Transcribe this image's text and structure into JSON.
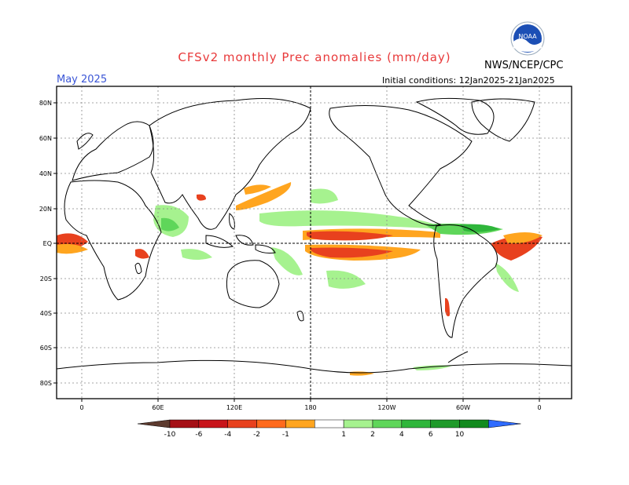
{
  "header": {
    "title": "CFSv2 monthly Prec anomalies (mm/day)",
    "org": "NWS/NCEP/CPC",
    "logo_text": "NOAA",
    "month": "May 2025",
    "initial_conditions": "Initial conditions: 12Jan2025-21Jan2025"
  },
  "axes": {
    "lat_labels": [
      "80N",
      "60N",
      "40N",
      "20N",
      "EQ",
      "20S",
      "40S",
      "60S",
      "80S"
    ],
    "lon_labels": [
      "0",
      "60E",
      "120E",
      "180",
      "120W",
      "60W",
      "0"
    ]
  },
  "colorbar": {
    "labels": [
      "-10",
      "-6",
      "-4",
      "-2",
      "-1",
      "1",
      "2",
      "4",
      "6",
      "10"
    ],
    "colors": [
      "#5c3a2e",
      "#a50f15",
      "#c8141a",
      "#e8411e",
      "#ff6a1c",
      "#ffa51f",
      "#ffffff",
      "#a6f28f",
      "#5fd65a",
      "#2fb63b",
      "#1f9a2a",
      "#128a1e",
      "#2f6bff"
    ]
  }
}
